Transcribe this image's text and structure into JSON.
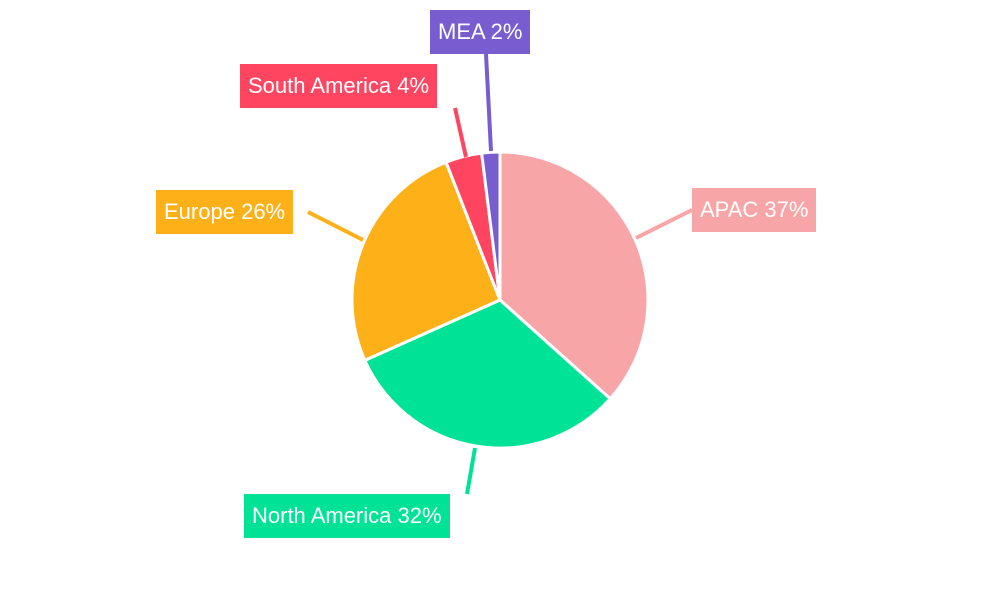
{
  "chart_data": {
    "type": "pie",
    "title": "",
    "start_angle_deg": 0,
    "direction": "clockwise",
    "slices": [
      {
        "label": "APAC",
        "value": 37,
        "percent_label": "37%",
        "color": "#F8A5A8"
      },
      {
        "label": "North America",
        "value": 32,
        "percent_label": "32%",
        "color": "#00E396"
      },
      {
        "label": "Europe",
        "value": 26,
        "percent_label": "26%",
        "color": "#FEB019"
      },
      {
        "label": "South America",
        "value": 4,
        "percent_label": "4%",
        "color": "#FF4560"
      },
      {
        "label": "MEA",
        "value": 2,
        "percent_label": "2%",
        "color": "#775DD0"
      }
    ],
    "legend": "none",
    "labels": "outside-callouts"
  }
}
